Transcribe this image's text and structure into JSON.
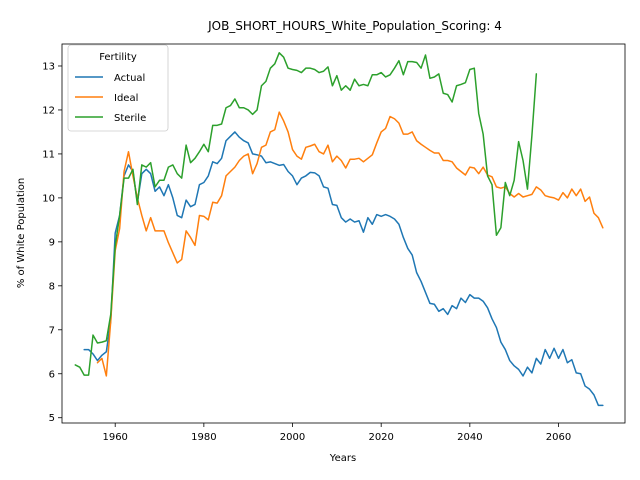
{
  "chart_data": {
    "type": "line",
    "title": "JOB_SHORT_HOURS_White_Population_Scoring: 4",
    "xlabel": "Years",
    "ylabel": "% of White Population",
    "xlim": [
      1948,
      2075
    ],
    "ylim": [
      4.88,
      13.5
    ],
    "xticks": [
      1960,
      1980,
      2000,
      2020,
      2040,
      2060
    ],
    "yticks": [
      5,
      6,
      7,
      8,
      9,
      10,
      11,
      12,
      13
    ],
    "grid": false,
    "legend": {
      "title": "Fertility",
      "placement": "top-left"
    },
    "colors": {
      "Actual": "#1f77b4",
      "Ideal": "#ff7f0e",
      "Sterile": "#2ca02c"
    },
    "series": [
      {
        "name": "Actual",
        "x": [
          1953,
          1954,
          1955,
          1956,
          1957,
          1958,
          1959,
          1960,
          1961,
          1962,
          1963,
          1964,
          1965,
          1966,
          1967,
          1968,
          1969,
          1970,
          1971,
          1972,
          1973,
          1974,
          1975,
          1976,
          1977,
          1978,
          1979,
          1980,
          1981,
          1982,
          1983,
          1984,
          1985,
          1986,
          1987,
          1988,
          1989,
          1990,
          1991,
          1992,
          1993,
          1994,
          1995,
          1996,
          1997,
          1998,
          1999,
          2000,
          2001,
          2002,
          2003,
          2004,
          2005,
          2006,
          2007,
          2008,
          2009,
          2010,
          2011,
          2012,
          2013,
          2014,
          2015,
          2016,
          2017,
          2018,
          2019,
          2020,
          2021,
          2022,
          2023,
          2024,
          2025,
          2026,
          2027,
          2028,
          2029,
          2030,
          2031,
          2032,
          2033,
          2034,
          2035,
          2036,
          2037,
          2038,
          2039,
          2040,
          2041,
          2042,
          2043,
          2044,
          2045,
          2046,
          2047,
          2048,
          2049,
          2050,
          2051,
          2052,
          2053,
          2054,
          2055,
          2056,
          2057,
          2058,
          2059,
          2060,
          2061,
          2062,
          2063,
          2064,
          2065,
          2066,
          2067,
          2068,
          2069,
          2070
        ],
        "values": [
          6.55,
          6.55,
          6.45,
          6.3,
          6.42,
          6.5,
          7.2,
          9.2,
          9.6,
          10.5,
          10.75,
          10.6,
          9.9,
          10.55,
          10.65,
          10.55,
          10.15,
          10.25,
          10.05,
          10.3,
          10.0,
          9.6,
          9.55,
          9.95,
          9.8,
          9.85,
          10.3,
          10.35,
          10.5,
          10.82,
          10.78,
          10.9,
          11.3,
          11.4,
          11.5,
          11.38,
          11.3,
          11.25,
          11.0,
          10.98,
          10.95,
          10.8,
          10.82,
          10.78,
          10.74,
          10.76,
          10.6,
          10.5,
          10.3,
          10.45,
          10.5,
          10.58,
          10.57,
          10.5,
          10.25,
          10.22,
          9.85,
          9.83,
          9.55,
          9.45,
          9.52,
          9.45,
          9.48,
          9.22,
          9.55,
          9.4,
          9.62,
          9.58,
          9.62,
          9.58,
          9.52,
          9.4,
          9.1,
          8.85,
          8.7,
          8.3,
          8.1,
          7.85,
          7.6,
          7.58,
          7.42,
          7.48,
          7.35,
          7.55,
          7.48,
          7.72,
          7.62,
          7.8,
          7.72,
          7.72,
          7.65,
          7.5,
          7.25,
          7.05,
          6.72,
          6.55,
          6.3,
          6.18,
          6.1,
          5.95,
          6.15,
          6.02,
          6.35,
          6.22,
          6.55,
          6.35,
          6.58,
          6.35,
          6.55,
          6.25,
          6.32,
          6.02,
          6.0,
          5.72,
          5.65,
          5.52,
          5.28,
          5.28
        ]
      },
      {
        "name": "Ideal",
        "x": [
          1956,
          1957,
          1958,
          1959,
          1960,
          1961,
          1962,
          1963,
          1964,
          1965,
          1966,
          1967,
          1968,
          1969,
          1970,
          1971,
          1972,
          1973,
          1974,
          1975,
          1976,
          1977,
          1978,
          1979,
          1980,
          1981,
          1982,
          1983,
          1984,
          1985,
          1986,
          1987,
          1988,
          1989,
          1990,
          1991,
          1992,
          1993,
          1994,
          1995,
          1996,
          1997,
          1998,
          1999,
          2000,
          2001,
          2002,
          2003,
          2004,
          2005,
          2006,
          2007,
          2008,
          2009,
          2010,
          2011,
          2012,
          2013,
          2014,
          2015,
          2016,
          2017,
          2018,
          2019,
          2020,
          2021,
          2022,
          2023,
          2024,
          2025,
          2026,
          2027,
          2028,
          2029,
          2030,
          2031,
          2032,
          2033,
          2034,
          2035,
          2036,
          2037,
          2038,
          2039,
          2040,
          2041,
          2042,
          2043,
          2044,
          2045,
          2046,
          2047,
          2048,
          2049,
          2050,
          2051,
          2052,
          2053,
          2054,
          2055,
          2056,
          2057,
          2058,
          2059,
          2060,
          2061,
          2062,
          2063,
          2064,
          2065,
          2066,
          2067,
          2068,
          2069,
          2070
        ],
        "values": [
          6.25,
          6.35,
          5.95,
          7.2,
          8.8,
          9.3,
          10.6,
          11.05,
          10.5,
          10.0,
          9.6,
          9.25,
          9.55,
          9.25,
          9.25,
          9.25,
          8.98,
          8.75,
          8.52,
          8.6,
          9.25,
          9.1,
          8.92,
          9.6,
          9.58,
          9.5,
          9.9,
          9.88,
          10.05,
          10.5,
          10.6,
          10.7,
          10.85,
          10.95,
          11.0,
          10.55,
          10.78,
          11.15,
          11.2,
          11.5,
          11.55,
          11.95,
          11.75,
          11.5,
          11.1,
          10.95,
          10.88,
          11.15,
          11.18,
          11.22,
          11.05,
          11.0,
          11.2,
          10.82,
          10.95,
          10.85,
          10.68,
          10.88,
          10.88,
          10.9,
          10.82,
          10.9,
          10.98,
          11.25,
          11.5,
          11.58,
          11.85,
          11.8,
          11.7,
          11.45,
          11.45,
          11.5,
          11.3,
          11.22,
          11.15,
          11.08,
          11.02,
          11.02,
          10.85,
          10.85,
          10.82,
          10.68,
          10.6,
          10.52,
          10.7,
          10.68,
          10.55,
          10.7,
          10.52,
          10.48,
          10.25,
          10.22,
          10.25,
          10.1,
          10.02,
          10.1,
          10.02,
          10.05,
          10.08,
          10.25,
          10.18,
          10.05,
          10.02,
          10.0,
          9.95,
          10.12,
          10.0,
          10.2,
          10.05,
          10.2,
          9.92,
          10.02,
          9.65,
          9.55,
          9.32
        ]
      },
      {
        "name": "Sterile",
        "x": [
          1951,
          1952,
          1953,
          1954,
          1955,
          1956,
          1957,
          1958,
          1959,
          1960,
          1961,
          1962,
          1963,
          1964,
          1965,
          1966,
          1967,
          1968,
          1969,
          1970,
          1971,
          1972,
          1973,
          1974,
          1975,
          1976,
          1977,
          1978,
          1979,
          1980,
          1981,
          1982,
          1983,
          1984,
          1985,
          1986,
          1987,
          1988,
          1989,
          1990,
          1991,
          1992,
          1993,
          1994,
          1995,
          1996,
          1997,
          1998,
          1999,
          2000,
          2001,
          2002,
          2003,
          2004,
          2005,
          2006,
          2007,
          2008,
          2009,
          2010,
          2011,
          2012,
          2013,
          2014,
          2015,
          2016,
          2017,
          2018,
          2019,
          2020,
          2021,
          2022,
          2023,
          2024,
          2025,
          2026,
          2027,
          2028,
          2029,
          2030,
          2031,
          2032,
          2033,
          2034,
          2035,
          2036,
          2037,
          2038,
          2039,
          2040,
          2041,
          2042,
          2043,
          2044,
          2045,
          2046,
          2047,
          2048,
          2049,
          2050,
          2051,
          2052,
          2053,
          2054,
          2055
        ],
        "values": [
          6.2,
          6.15,
          5.97,
          5.97,
          6.88,
          6.7,
          6.72,
          6.75,
          7.35,
          8.9,
          9.6,
          10.45,
          10.45,
          10.65,
          9.85,
          10.75,
          10.7,
          10.8,
          10.25,
          10.4,
          10.4,
          10.7,
          10.75,
          10.55,
          10.45,
          11.2,
          10.8,
          10.9,
          11.05,
          11.22,
          11.05,
          11.65,
          11.65,
          11.68,
          12.05,
          12.1,
          12.25,
          12.05,
          12.05,
          12.0,
          11.9,
          12.0,
          12.55,
          12.65,
          12.95,
          13.05,
          13.3,
          13.2,
          12.95,
          12.92,
          12.9,
          12.85,
          12.95,
          12.95,
          12.92,
          12.85,
          12.88,
          12.98,
          12.55,
          12.78,
          12.45,
          12.55,
          12.45,
          12.7,
          12.55,
          12.58,
          12.55,
          12.8,
          12.8,
          12.85,
          12.75,
          12.8,
          12.95,
          13.12,
          12.8,
          13.1,
          13.1,
          13.08,
          12.95,
          13.25,
          12.72,
          12.75,
          12.82,
          12.38,
          12.35,
          12.18,
          12.55,
          12.58,
          12.62,
          12.92,
          12.95,
          11.92,
          11.45,
          10.5,
          10.3,
          9.15,
          9.32,
          10.35,
          10.05,
          10.4,
          11.28,
          10.85,
          10.2,
          11.42,
          12.82
        ]
      }
    ]
  }
}
